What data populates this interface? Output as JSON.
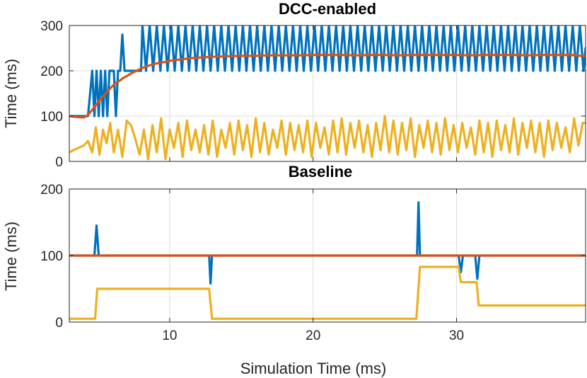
{
  "chart_data": [
    {
      "type": "line",
      "title": "DCC-enabled",
      "xlabel": "",
      "ylabel": "Time (ms)",
      "xlim": [
        3,
        39
      ],
      "ylim": [
        0,
        300
      ],
      "yticks": [
        0,
        100,
        200,
        300
      ],
      "yticklabels": [
        "0",
        "100",
        "200",
        "300"
      ],
      "xticks": [
        10,
        20,
        30
      ],
      "xticklabels": [
        "",
        "",
        ""
      ],
      "grid": true,
      "series": [
        {
          "name": "blue",
          "color": "#0072BD",
          "x": [
            3,
            4.3,
            4.6,
            4.75,
            4.9,
            5.05,
            5.2,
            5.35,
            5.5,
            5.65,
            5.8,
            5.95,
            6.1,
            6.25,
            6.4,
            6.55,
            6.7,
            6.85,
            7.05,
            7.25,
            7.5,
            8.0,
            8.1,
            8.35,
            8.6,
            8.85,
            9.1,
            9.35,
            9.6,
            9.85,
            10.1,
            10.35,
            10.6,
            10.85,
            11.1,
            11.35,
            11.6,
            11.85,
            12.1,
            12.35,
            12.6,
            12.85,
            13.1,
            13.35,
            13.6,
            13.85,
            14.1,
            14.35,
            14.6,
            14.85,
            15.1,
            15.35,
            15.6,
            15.85,
            16.1,
            16.35,
            16.6,
            16.85,
            17.1,
            17.35,
            17.6,
            17.85,
            18.1,
            18.35,
            18.6,
            18.85,
            19.1,
            19.35,
            19.6,
            19.85,
            20.1,
            20.35,
            20.6,
            20.85,
            21.1,
            21.35,
            21.6,
            21.85,
            22.1,
            22.35,
            22.6,
            22.85,
            23.1,
            23.35,
            23.6,
            23.85,
            24.1,
            24.35,
            24.6,
            24.85,
            25.1,
            25.35,
            25.6,
            25.85,
            26.1,
            26.35,
            26.6,
            26.85,
            27.1,
            27.35,
            27.6,
            27.85,
            28.1,
            28.35,
            28.6,
            28.85,
            29.1,
            29.35,
            29.6,
            29.85,
            30.1,
            30.35,
            30.6,
            30.85,
            31.1,
            31.35,
            31.6,
            31.85,
            32.1,
            32.35,
            32.6,
            32.85,
            33.1,
            33.35,
            33.6,
            33.85,
            34.1,
            34.35,
            34.6,
            34.85,
            35.1,
            35.35,
            35.6,
            35.85,
            36.1,
            36.35,
            36.6,
            36.85,
            37.1,
            37.35,
            37.6,
            37.85,
            38.1,
            38.35,
            38.6,
            38.85,
            39
          ],
          "y": [
            100,
            100,
            200,
            100,
            200,
            100,
            200,
            100,
            200,
            100,
            200,
            200,
            200,
            100,
            200,
            200,
            280,
            200,
            200,
            200,
            200,
            200,
            300,
            200,
            300,
            200,
            300,
            200,
            300,
            200,
            300,
            200,
            300,
            200,
            300,
            200,
            300,
            200,
            300,
            200,
            300,
            200,
            300,
            200,
            300,
            200,
            300,
            200,
            300,
            200,
            300,
            200,
            300,
            200,
            300,
            200,
            300,
            200,
            300,
            200,
            300,
            200,
            300,
            200,
            300,
            200,
            300,
            200,
            300,
            200,
            300,
            200,
            300,
            200,
            300,
            200,
            300,
            200,
            300,
            200,
            300,
            200,
            300,
            200,
            300,
            200,
            300,
            200,
            300,
            200,
            300,
            200,
            300,
            200,
            300,
            200,
            300,
            200,
            300,
            200,
            300,
            200,
            300,
            200,
            300,
            200,
            300,
            200,
            300,
            200,
            300,
            200,
            300,
            200,
            300,
            200,
            300,
            200,
            300,
            200,
            300,
            200,
            300,
            200,
            300,
            200,
            300,
            200,
            300,
            200,
            300,
            200,
            300,
            200,
            300,
            200,
            300,
            200,
            300,
            200,
            300,
            200,
            300,
            200,
            300,
            200,
            250
          ]
        },
        {
          "name": "orange",
          "color": "#D95319",
          "x": [
            3,
            3.5,
            4.0,
            4.3,
            4.7,
            5.0,
            5.3,
            5.6,
            5.9,
            6.2,
            6.5,
            6.8,
            7.1,
            7.4,
            7.7,
            8.0,
            8.4,
            8.8,
            9.2,
            9.6,
            10.0,
            10.5,
            11.0,
            11.5,
            12.0,
            13.0,
            14.0,
            15.0,
            16.0,
            17.0,
            18.0,
            19.0,
            20.0,
            21.0,
            22.0,
            23.0,
            24.0,
            25.0,
            26.0,
            27.0,
            28.0,
            29.0,
            30.0,
            31.0,
            32.0,
            33.0,
            34.0,
            35.0,
            36.0,
            37.0,
            38.0,
            39.0
          ],
          "y": [
            100,
            98,
            97,
            102,
            118,
            130,
            142,
            152,
            163,
            172,
            178,
            185,
            190,
            196,
            200,
            205,
            210,
            214,
            217,
            219,
            222,
            224,
            226,
            228,
            229,
            231,
            232,
            233,
            233,
            234,
            234,
            234,
            235,
            235,
            235,
            234,
            235,
            235,
            234,
            235,
            235,
            235,
            235,
            234,
            235,
            235,
            235,
            234,
            235,
            235,
            235,
            232
          ]
        },
        {
          "name": "yellow",
          "color": "#EDB120",
          "x": [
            3,
            3.5,
            4.0,
            4.3,
            4.6,
            4.85,
            5.1,
            5.35,
            5.6,
            5.85,
            6.1,
            6.4,
            6.7,
            7.0,
            7.3,
            7.6,
            7.9,
            8.2,
            8.5,
            8.8,
            9.1,
            9.4,
            9.7,
            10.0,
            10.3,
            10.6,
            10.9,
            11.2,
            11.5,
            11.8,
            12.1,
            12.4,
            12.7,
            13.0,
            13.3,
            13.6,
            13.9,
            14.2,
            14.5,
            14.8,
            15.1,
            15.4,
            15.7,
            16.0,
            16.3,
            16.6,
            16.9,
            17.2,
            17.5,
            17.8,
            18.1,
            18.4,
            18.7,
            19.0,
            19.3,
            19.6,
            19.9,
            20.2,
            20.5,
            20.8,
            21.1,
            21.4,
            21.7,
            22.0,
            22.3,
            22.6,
            22.9,
            23.2,
            23.5,
            23.8,
            24.1,
            24.4,
            24.7,
            25.0,
            25.3,
            25.6,
            25.9,
            26.2,
            26.5,
            26.8,
            27.1,
            27.4,
            27.7,
            28.0,
            28.3,
            28.6,
            28.9,
            29.2,
            29.5,
            29.8,
            30.1,
            30.4,
            30.7,
            31.0,
            31.3,
            31.6,
            31.9,
            32.2,
            32.5,
            32.8,
            33.1,
            33.4,
            33.7,
            34.0,
            34.3,
            34.6,
            34.9,
            35.2,
            35.5,
            35.8,
            36.1,
            36.4,
            36.7,
            37.0,
            37.3,
            37.6,
            37.9,
            38.2,
            38.5,
            38.8,
            39.0
          ],
          "y": [
            20,
            28,
            35,
            45,
            20,
            75,
            15,
            70,
            40,
            85,
            20,
            70,
            10,
            90,
            80,
            50,
            15,
            70,
            5,
            80,
            20,
            95,
            5,
            70,
            30,
            85,
            10,
            90,
            25,
            70,
            20,
            80,
            15,
            90,
            10,
            70,
            30,
            85,
            15,
            90,
            25,
            80,
            10,
            95,
            20,
            85,
            15,
            70,
            30,
            90,
            15,
            85,
            25,
            80,
            20,
            90,
            10,
            85,
            30,
            75,
            15,
            90,
            20,
            95,
            15,
            85,
            30,
            90,
            20,
            80,
            10,
            85,
            25,
            100,
            20,
            90,
            15,
            85,
            25,
            95,
            10,
            80,
            30,
            90,
            20,
            85,
            15,
            95,
            25,
            80,
            20,
            85,
            30,
            75,
            15,
            90,
            20,
            85,
            10,
            90,
            25,
            80,
            20,
            95,
            15,
            85,
            30,
            90,
            20,
            85,
            10,
            90,
            25,
            85,
            30,
            75,
            20,
            95,
            35,
            85,
            85
          ]
        }
      ]
    },
    {
      "type": "line",
      "title": "Baseline",
      "xlabel": "Simulation Time (ms)",
      "ylabel": "Time (ms)",
      "xlim": [
        3,
        39
      ],
      "ylim": [
        0,
        200
      ],
      "yticks": [
        0,
        100,
        200
      ],
      "yticklabels": [
        "0",
        "100",
        "200"
      ],
      "xticks": [
        10,
        20,
        30
      ],
      "xticklabels": [
        "10",
        "20",
        "30"
      ],
      "grid": true,
      "series": [
        {
          "name": "blue",
          "color": "#0072BD",
          "x": [
            3,
            4.75,
            4.9,
            5.05,
            5.2,
            12.75,
            12.85,
            12.95,
            27.25,
            27.35,
            27.45,
            27.6,
            30.15,
            30.3,
            30.45,
            31.3,
            31.45,
            31.6,
            39
          ],
          "y": [
            100,
            100,
            145,
            100,
            100,
            100,
            58,
            100,
            100,
            180,
            100,
            100,
            100,
            75,
            100,
            100,
            65,
            100,
            100
          ]
        },
        {
          "name": "orange",
          "color": "#D95319",
          "x": [
            3,
            39
          ],
          "y": [
            100,
            100
          ]
        },
        {
          "name": "yellow",
          "color": "#EDB120",
          "x": [
            3,
            4.8,
            4.95,
            12.75,
            12.95,
            27.2,
            27.45,
            30.15,
            30.3,
            31.4,
            31.55,
            39
          ],
          "y": [
            5,
            5,
            50,
            50,
            5,
            5,
            83,
            83,
            60,
            60,
            25,
            25
          ]
        }
      ]
    }
  ]
}
